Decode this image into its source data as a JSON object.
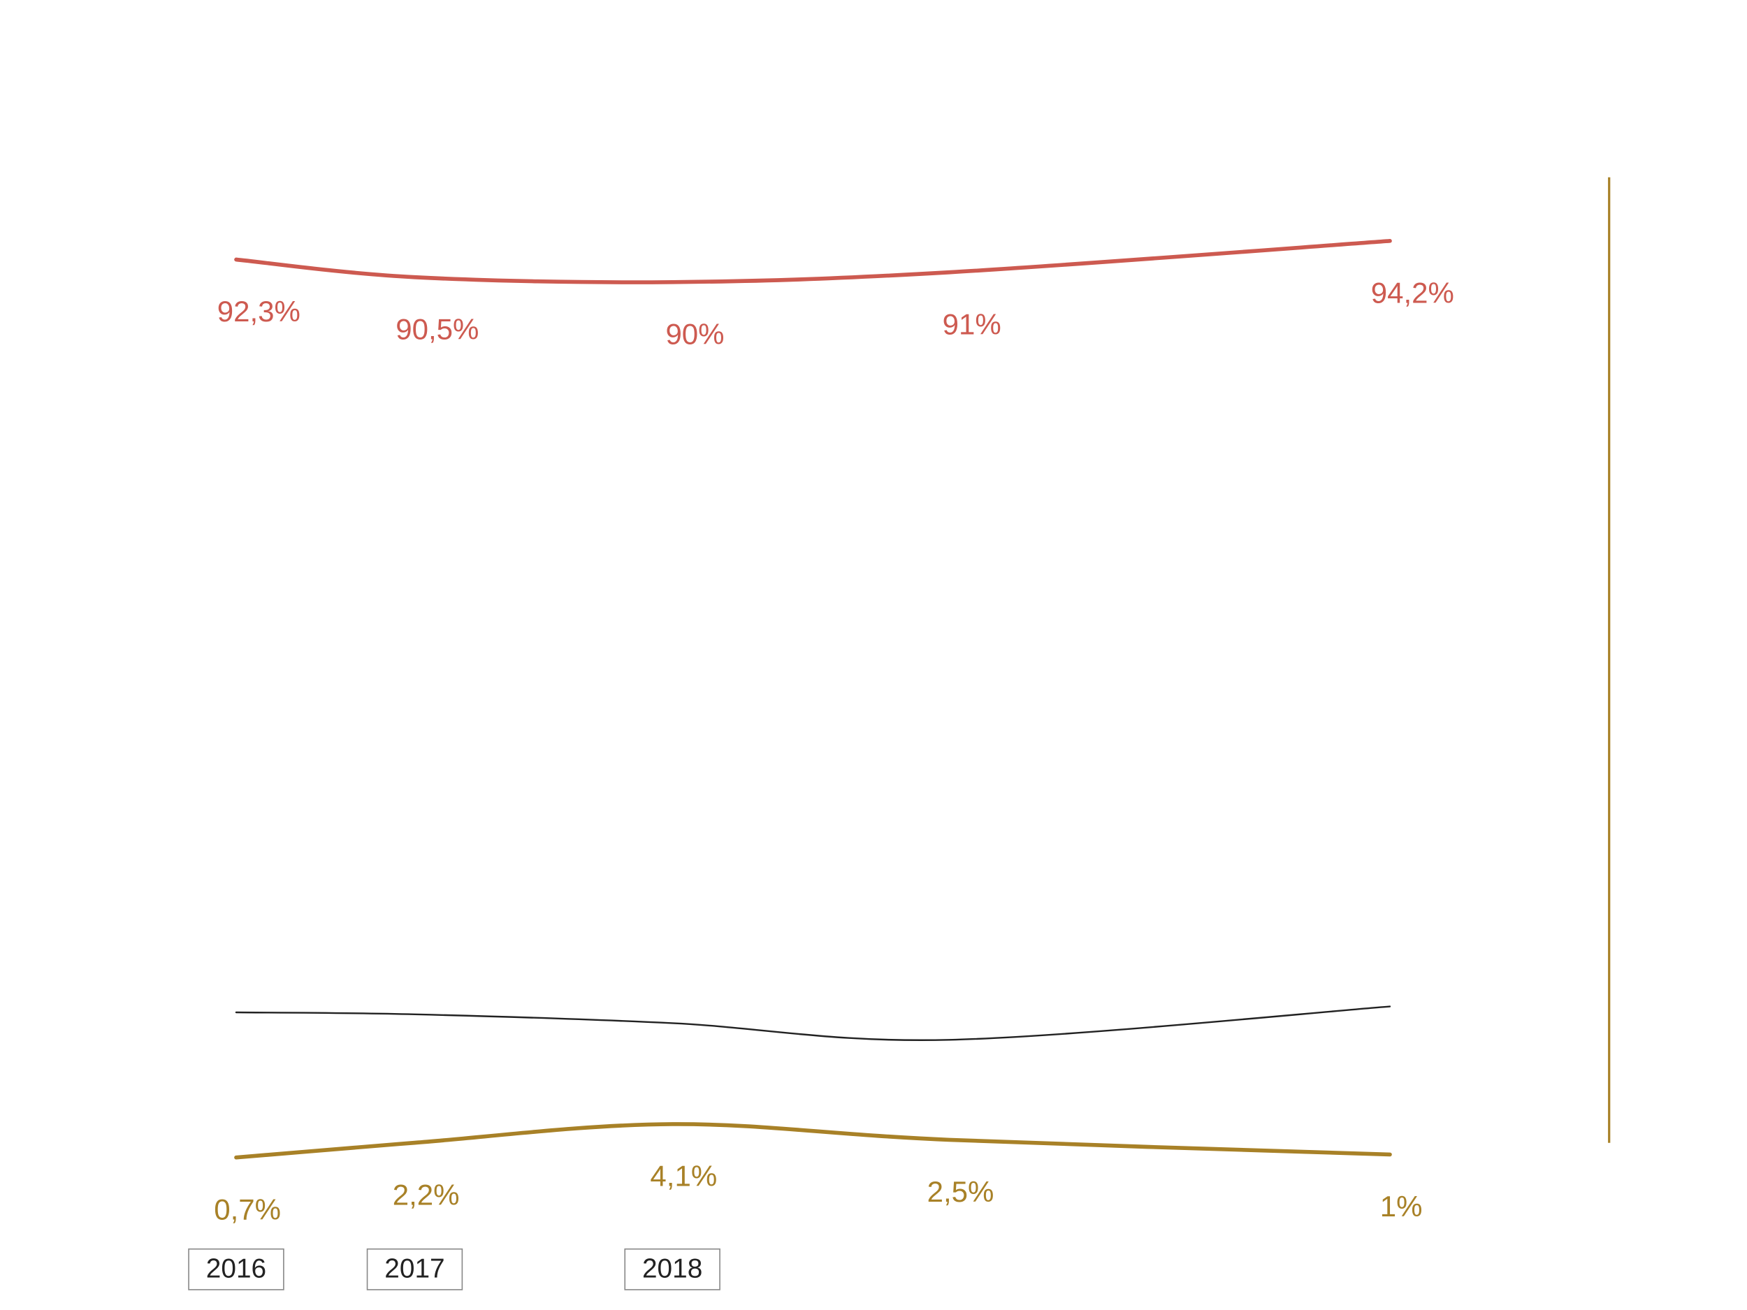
{
  "chart_data": {
    "type": "line",
    "categories": [
      "2016",
      "2017",
      "2018",
      null,
      null
    ],
    "ylim": [
      0,
      100
    ],
    "series": [
      {
        "color": "#cd5a50",
        "values": [
          92.3,
          90.5,
          90,
          91,
          94.2
        ],
        "value_labels": [
          "92,3%",
          "90,5%",
          "90%",
          "91%",
          "94,2%"
        ]
      },
      {
        "color": "#222222",
        "values": [
          15.5,
          15.3,
          14.4,
          12.7,
          16.1
        ]
      },
      {
        "color": "#a88127",
        "values": [
          0.7,
          2.2,
          4.1,
          2.5,
          1
        ],
        "value_labels": [
          "0,7%",
          "2,2%",
          "4,1%",
          "2,5%",
          "1%"
        ]
      }
    ]
  }
}
